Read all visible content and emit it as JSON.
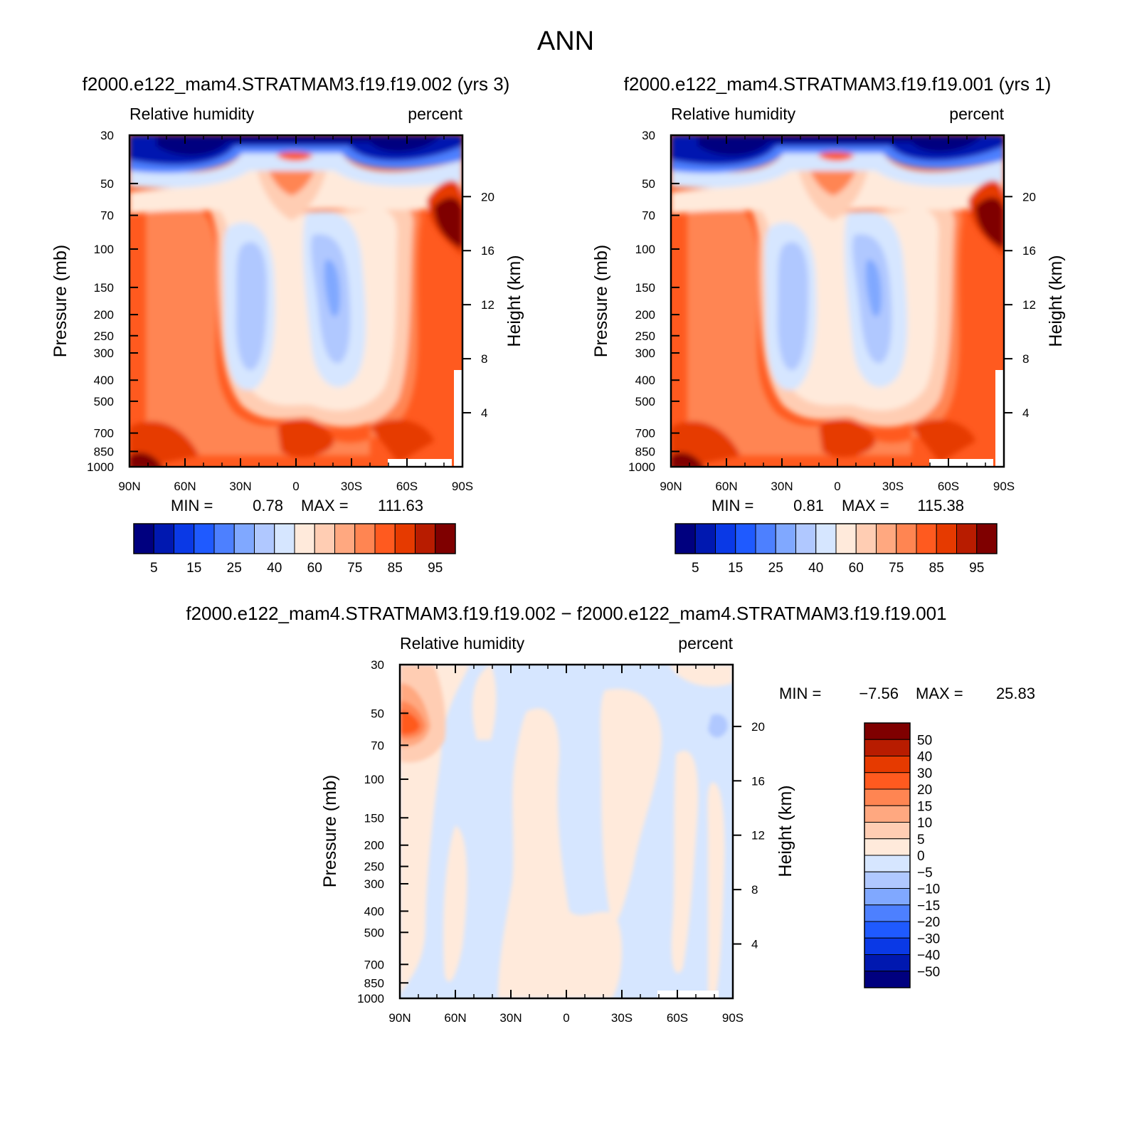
{
  "page_title": "ANN",
  "chart_data": [
    {
      "type": "heatmap",
      "panel": "case1",
      "title": "f2000.e122_mam4.STRATMAM3.f19.f19.002 (yrs 3)",
      "left_label": "Relative humidity",
      "right_label": "percent",
      "ylabel": "Pressure (mb)",
      "y2label": "Height (km)",
      "x_ticks": [
        "90N",
        "60N",
        "30N",
        "0",
        "30S",
        "60S",
        "90S"
      ],
      "y_ticks": [
        "30",
        "50",
        "70",
        "100",
        "150",
        "200",
        "250",
        "300",
        "400",
        "500",
        "700",
        "850",
        "1000"
      ],
      "y_tick_values": [
        30,
        50,
        70,
        100,
        150,
        200,
        250,
        300,
        400,
        500,
        700,
        850,
        1000
      ],
      "y2_ticks": [
        "20",
        "16",
        "12",
        "8",
        "4"
      ],
      "y2_tick_values": [
        20,
        16,
        12,
        8,
        4
      ],
      "min_label": "MIN =",
      "min_value": "0.78",
      "max_label": "MAX =",
      "max_value": "111.63",
      "colorbar": {
        "levels": [
          "5",
          "15",
          "25",
          "40",
          "60",
          "75",
          "85",
          "95"
        ],
        "colors": [
          "#00007f",
          "#0018b0",
          "#0a39e6",
          "#1f5aff",
          "#4d80ff",
          "#80a8ff",
          "#b0c8ff",
          "#d6e6ff",
          "#ffeadb",
          "#ffcdb3",
          "#ffa880",
          "#ff8552",
          "#ff5a1f",
          "#e63a00",
          "#b81c00",
          "#7f0000"
        ]
      }
    },
    {
      "type": "heatmap",
      "panel": "case2",
      "title": "f2000.e122_mam4.STRATMAM3.f19.f19.001 (yrs 1)",
      "left_label": "Relative humidity",
      "right_label": "percent",
      "ylabel": "Pressure (mb)",
      "y2label": "Height (km)",
      "x_ticks": [
        "90N",
        "60N",
        "30N",
        "0",
        "30S",
        "60S",
        "90S"
      ],
      "y_ticks": [
        "30",
        "50",
        "70",
        "100",
        "150",
        "200",
        "250",
        "300",
        "400",
        "500",
        "700",
        "850",
        "1000"
      ],
      "y_tick_values": [
        30,
        50,
        70,
        100,
        150,
        200,
        250,
        300,
        400,
        500,
        700,
        850,
        1000
      ],
      "y2_ticks": [
        "20",
        "16",
        "12",
        "8",
        "4"
      ],
      "y2_tick_values": [
        20,
        16,
        12,
        8,
        4
      ],
      "min_label": "MIN =",
      "min_value": "0.81",
      "max_label": "MAX =",
      "max_value": "115.38",
      "colorbar": {
        "levels": [
          "5",
          "15",
          "25",
          "40",
          "60",
          "75",
          "85",
          "95"
        ],
        "colors": [
          "#00007f",
          "#0018b0",
          "#0a39e6",
          "#1f5aff",
          "#4d80ff",
          "#80a8ff",
          "#b0c8ff",
          "#d6e6ff",
          "#ffeadb",
          "#ffcdb3",
          "#ffa880",
          "#ff8552",
          "#ff5a1f",
          "#e63a00",
          "#b81c00",
          "#7f0000"
        ]
      }
    },
    {
      "type": "heatmap",
      "panel": "difference",
      "title": "f2000.e122_mam4.STRATMAM3.f19.f19.002 − f2000.e122_mam4.STRATMAM3.f19.f19.001",
      "left_label": "Relative humidity",
      "right_label": "percent",
      "ylabel": "Pressure (mb)",
      "y2label": "Height (km)",
      "x_ticks": [
        "90N",
        "60N",
        "30N",
        "0",
        "30S",
        "60S",
        "90S"
      ],
      "y_ticks": [
        "30",
        "50",
        "70",
        "100",
        "150",
        "200",
        "250",
        "300",
        "400",
        "500",
        "700",
        "850",
        "1000"
      ],
      "y_tick_values": [
        30,
        50,
        70,
        100,
        150,
        200,
        250,
        300,
        400,
        500,
        700,
        850,
        1000
      ],
      "y2_ticks": [
        "20",
        "16",
        "12",
        "8",
        "4"
      ],
      "y2_tick_values": [
        20,
        16,
        12,
        8,
        4
      ],
      "min_label": "MIN =",
      "min_value": "−7.56",
      "max_label": "MAX =",
      "max_value": "25.83",
      "colorbar": {
        "levels": [
          "50",
          "40",
          "30",
          "20",
          "15",
          "10",
          "5",
          "0",
          "−5",
          "−10",
          "−15",
          "−20",
          "−30",
          "−40",
          "−50"
        ],
        "colors": [
          "#7f0000",
          "#b81c00",
          "#e63a00",
          "#ff5a1f",
          "#ff8552",
          "#ffa880",
          "#ffcdb3",
          "#ffeadb",
          "#d6e6ff",
          "#b0c8ff",
          "#80a8ff",
          "#4d80ff",
          "#1f5aff",
          "#0a39e6",
          "#0018b0",
          "#00007f"
        ]
      }
    }
  ]
}
